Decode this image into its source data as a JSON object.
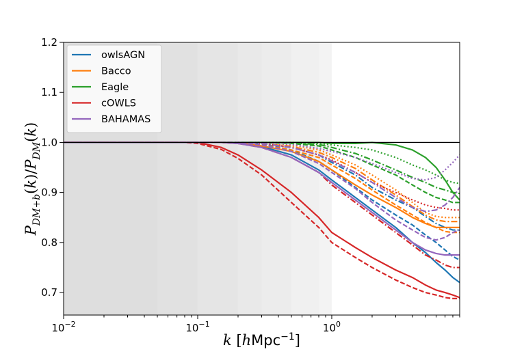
{
  "chart_data": {
    "type": "line",
    "title": "",
    "xlabel": "k [hMpc^-1]",
    "ylabel": "P_DM+b(k)/P_DM(k)",
    "xscale": "log",
    "xlim": [
      0.01,
      9
    ],
    "ylim": [
      0.655,
      1.2
    ],
    "x_ticks": [
      {
        "value": 0.01,
        "base": "10",
        "exp": "-2"
      },
      {
        "value": 0.1,
        "base": "10",
        "exp": "-1"
      },
      {
        "value": 1,
        "base": "10",
        "exp": "0"
      }
    ],
    "y_ticks": [
      "0.7",
      "0.8",
      "0.9",
      "1.0",
      "1.1",
      "1.2"
    ],
    "reference_line": 1.0,
    "shaded_band_edges_k": [
      0.05,
      0.1,
      0.2,
      0.3,
      0.5,
      0.8,
      1.0
    ],
    "legend": {
      "position": "upper-left",
      "entries": [
        {
          "name": "owlsAGN",
          "color": "#1f77b4"
        },
        {
          "name": "Bacco",
          "color": "#ff7f0e"
        },
        {
          "name": "Eagle",
          "color": "#2ca02c"
        },
        {
          "name": "cOWLS",
          "color": "#d62728"
        },
        {
          "name": "BAHAMAS",
          "color": "#9467bd"
        }
      ]
    },
    "k": [
      0.01,
      0.05,
      0.08,
      0.1,
      0.15,
      0.2,
      0.3,
      0.5,
      0.8,
      1.0,
      1.5,
      2.0,
      3.0,
      4.0,
      5.0,
      6.0,
      7.0,
      8.0,
      9.0
    ],
    "series": [
      {
        "name": "owlsAGN",
        "style": "solid",
        "color": "#1f77b4",
        "values": [
          1,
          1,
          1,
          1,
          1,
          0.998,
          0.992,
          0.975,
          0.945,
          0.925,
          0.89,
          0.865,
          0.83,
          0.8,
          0.78,
          0.76,
          0.745,
          0.73,
          0.72
        ]
      },
      {
        "name": "owlsAGN",
        "style": "dashed",
        "color": "#1f77b4",
        "values": [
          1,
          1,
          1,
          1,
          1,
          1,
          0.997,
          0.985,
          0.962,
          0.945,
          0.91,
          0.885,
          0.855,
          0.835,
          0.815,
          0.8,
          0.785,
          0.772,
          0.765
        ]
      },
      {
        "name": "owlsAGN",
        "style": "dashdot",
        "color": "#1f77b4",
        "values": [
          1,
          1,
          1,
          1,
          1,
          1,
          0.998,
          0.99,
          0.975,
          0.96,
          0.935,
          0.91,
          0.885,
          0.87,
          0.852,
          0.838,
          0.83,
          0.825,
          0.825
        ]
      },
      {
        "name": "Bacco",
        "style": "solid",
        "color": "#ff7f0e",
        "values": [
          1,
          1,
          1,
          1,
          1,
          0.999,
          0.993,
          0.982,
          0.962,
          0.945,
          0.915,
          0.895,
          0.87,
          0.85,
          0.838,
          0.83,
          0.83,
          0.83,
          0.83
        ]
      },
      {
        "name": "Bacco",
        "style": "dashed",
        "color": "#ff7f0e",
        "values": [
          1,
          1,
          1,
          1,
          1,
          0.999,
          0.995,
          0.985,
          0.97,
          0.955,
          0.928,
          0.905,
          0.875,
          0.855,
          0.84,
          0.83,
          0.822,
          0.82,
          0.82
        ]
      },
      {
        "name": "Bacco",
        "style": "dashdot",
        "color": "#ff7f0e",
        "values": [
          1,
          1,
          1,
          1,
          1,
          1,
          0.998,
          0.992,
          0.98,
          0.97,
          0.948,
          0.925,
          0.895,
          0.872,
          0.855,
          0.845,
          0.842,
          0.842,
          0.842
        ]
      },
      {
        "name": "Bacco",
        "style": "dotted",
        "color": "#ff7f0e",
        "values": [
          1,
          1,
          1,
          1,
          1,
          1,
          0.999,
          0.995,
          0.985,
          0.975,
          0.955,
          0.935,
          0.905,
          0.88,
          0.86,
          0.852,
          0.85,
          0.85,
          0.85
        ]
      },
      {
        "name": "Eagle",
        "style": "solid",
        "color": "#2ca02c",
        "values": [
          1,
          1,
          1,
          1,
          1,
          1,
          1,
          1,
          1,
          0.998,
          0.998,
          1.0,
          0.995,
          0.985,
          0.97,
          0.95,
          0.925,
          0.9,
          0.885
        ]
      },
      {
        "name": "Eagle",
        "style": "dashed",
        "color": "#2ca02c",
        "values": [
          1,
          1,
          1,
          1,
          1,
          1,
          1,
          0.998,
          0.993,
          0.985,
          0.97,
          0.955,
          0.935,
          0.915,
          0.9,
          0.89,
          0.885,
          0.88,
          0.88
        ]
      },
      {
        "name": "Eagle",
        "style": "dashdot",
        "color": "#2ca02c",
        "values": [
          1,
          1,
          1,
          1,
          1,
          1,
          1,
          0.999,
          0.996,
          0.99,
          0.978,
          0.965,
          0.945,
          0.93,
          0.92,
          0.91,
          0.905,
          0.9,
          0.898
        ]
      },
      {
        "name": "Eagle",
        "style": "dotted",
        "color": "#2ca02c",
        "values": [
          1,
          1,
          1,
          1,
          1,
          1,
          1,
          1,
          0.998,
          0.995,
          0.99,
          0.985,
          0.97,
          0.955,
          0.945,
          0.935,
          0.925,
          0.92,
          0.918
        ]
      },
      {
        "name": "cOWLS",
        "style": "solid",
        "color": "#d62728",
        "values": [
          1,
          1,
          1,
          1,
          0.99,
          0.975,
          0.945,
          0.9,
          0.85,
          0.82,
          0.79,
          0.77,
          0.745,
          0.73,
          0.715,
          0.705,
          0.7,
          0.695,
          0.69
        ]
      },
      {
        "name": "cOWLS",
        "style": "dashed",
        "color": "#d62728",
        "values": [
          1,
          1,
          1,
          0.998,
          0.986,
          0.968,
          0.935,
          0.88,
          0.83,
          0.8,
          0.77,
          0.75,
          0.725,
          0.71,
          0.7,
          0.695,
          0.69,
          0.688,
          0.688
        ]
      },
      {
        "name": "cOWLS",
        "style": "dashdot",
        "color": "#d62728",
        "values": [
          1,
          1,
          1,
          1,
          1,
          0.998,
          0.99,
          0.97,
          0.94,
          0.915,
          0.88,
          0.855,
          0.82,
          0.795,
          0.775,
          0.765,
          0.755,
          0.75,
          0.75
        ]
      },
      {
        "name": "cOWLS",
        "style": "dotted",
        "color": "#d62728",
        "values": [
          1,
          1,
          1,
          1,
          1,
          1,
          0.998,
          0.99,
          0.975,
          0.965,
          0.94,
          0.92,
          0.9,
          0.885,
          0.875,
          0.87,
          0.868,
          0.865,
          0.865
        ]
      },
      {
        "name": "BAHAMAS",
        "style": "solid",
        "color": "#9467bd",
        "values": [
          1,
          1,
          1,
          1,
          1,
          0.998,
          0.99,
          0.97,
          0.94,
          0.92,
          0.885,
          0.86,
          0.825,
          0.8,
          0.785,
          0.778,
          0.775,
          0.775,
          0.775
        ]
      },
      {
        "name": "BAHAMAS",
        "style": "dashed",
        "color": "#9467bd",
        "values": [
          1,
          1,
          1,
          1,
          1,
          1,
          0.995,
          0.982,
          0.958,
          0.94,
          0.908,
          0.88,
          0.845,
          0.825,
          0.81,
          0.805,
          0.81,
          0.82,
          0.825
        ]
      },
      {
        "name": "BAHAMAS",
        "style": "dashdot",
        "color": "#9467bd",
        "values": [
          1,
          1,
          1,
          1,
          1,
          1,
          0.998,
          0.99,
          0.975,
          0.963,
          0.94,
          0.92,
          0.89,
          0.87,
          0.862,
          0.865,
          0.875,
          0.89,
          0.91
        ]
      },
      {
        "name": "BAHAMAS",
        "style": "dotted",
        "color": "#9467bd",
        "values": [
          1,
          1,
          1,
          1,
          1,
          1,
          1,
          0.996,
          0.988,
          0.982,
          0.97,
          0.958,
          0.94,
          0.928,
          0.925,
          0.93,
          0.945,
          0.96,
          0.975
        ]
      }
    ]
  }
}
